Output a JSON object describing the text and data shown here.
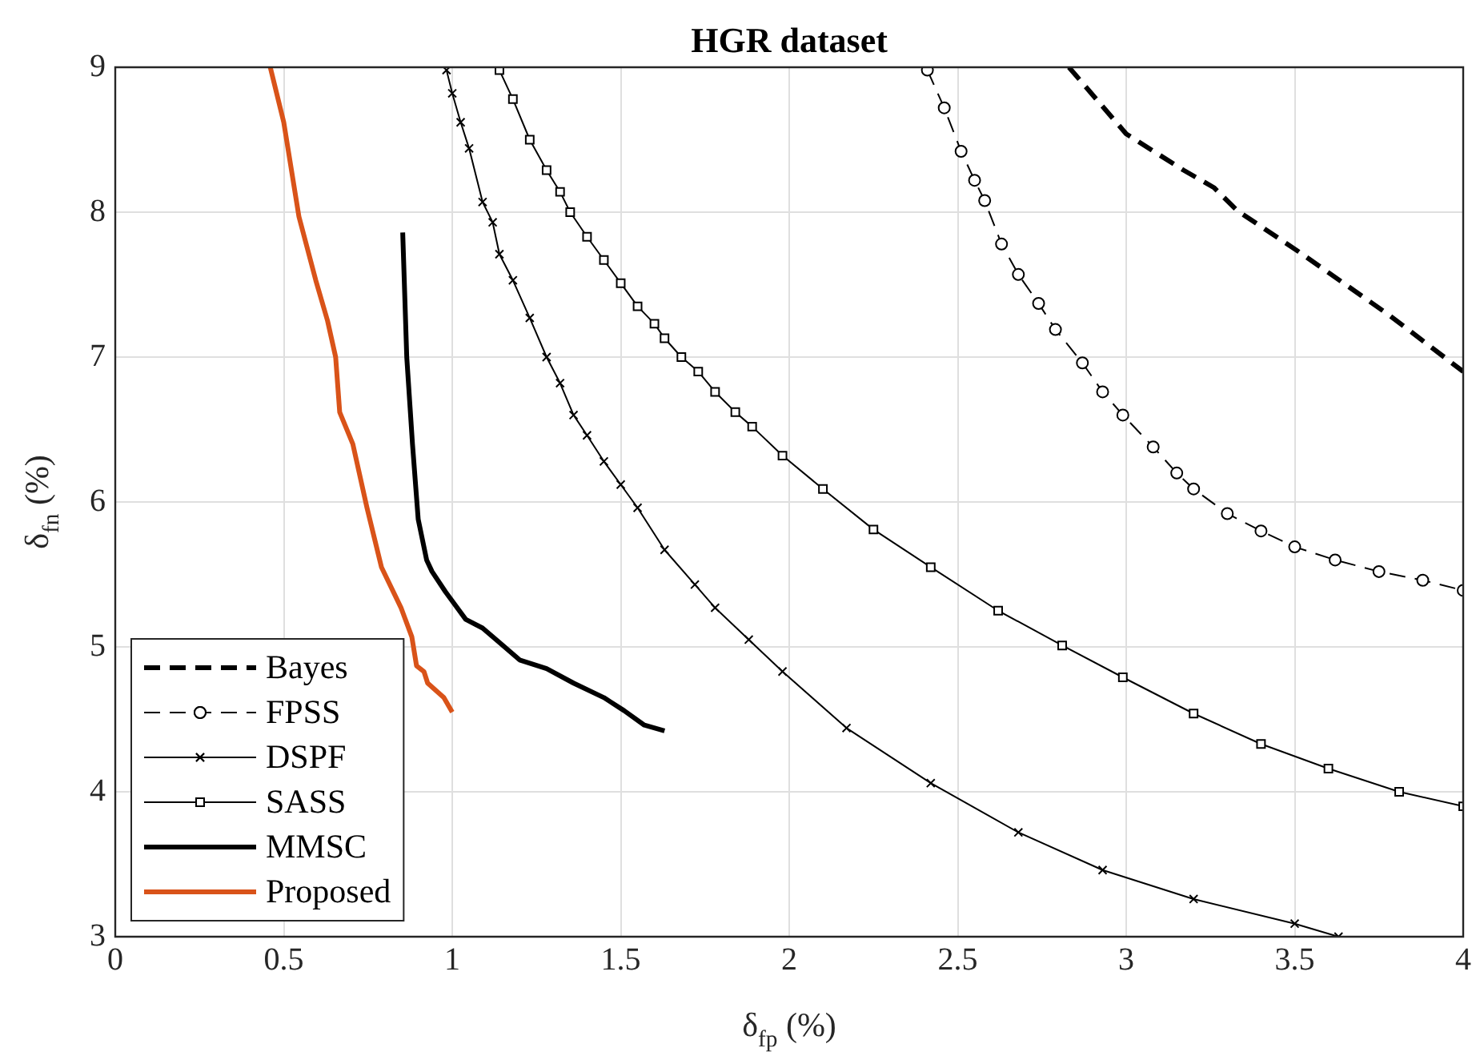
{
  "chart_data": {
    "type": "line",
    "title": "HGR dataset",
    "xlabel": "δ$_{fp}$ (%)",
    "ylabel": "δ$_{fn}$ (%)",
    "xlim": [
      0,
      4
    ],
    "ylim": [
      3,
      9
    ],
    "xticks": [
      0,
      0.5,
      1,
      1.5,
      2,
      2.5,
      3,
      3.5,
      4
    ],
    "yticks": [
      3,
      4,
      5,
      6,
      7,
      8,
      9
    ],
    "grid": true,
    "legend": "bottom left",
    "series": [
      {
        "name": "Bayes",
        "color": "#000000",
        "line_style": "dashed",
        "marker": "none",
        "x": [
          2.83,
          3.0,
          3.17,
          3.26,
          3.33,
          3.51,
          3.78,
          4.0
        ],
        "values": [
          9.0,
          8.54,
          8.29,
          8.17,
          8.01,
          7.73,
          7.29,
          6.9
        ]
      },
      {
        "name": "FPSS",
        "color": "#000000",
        "line_style": "dashed",
        "marker": "circle",
        "x": [
          2.41,
          2.46,
          2.51,
          2.55,
          2.58,
          2.63,
          2.68,
          2.74,
          2.79,
          2.87,
          2.93,
          2.99,
          3.08,
          3.15,
          3.2,
          3.3,
          3.4,
          3.5,
          3.62,
          3.75,
          3.88,
          4.0
        ],
        "values": [
          8.98,
          8.72,
          8.42,
          8.22,
          8.08,
          7.78,
          7.57,
          7.37,
          7.19,
          6.96,
          6.76,
          6.6,
          6.38,
          6.2,
          6.09,
          5.92,
          5.8,
          5.69,
          5.6,
          5.52,
          5.46,
          5.39
        ]
      },
      {
        "name": "DSPF",
        "color": "#000000",
        "line_style": "solid",
        "marker": "cross",
        "x": [
          0.983,
          1.0,
          1.025,
          1.05,
          1.09,
          1.12,
          1.14,
          1.18,
          1.23,
          1.28,
          1.32,
          1.36,
          1.4,
          1.45,
          1.5,
          1.55,
          1.63,
          1.72,
          1.78,
          1.88,
          1.98,
          2.17,
          2.42,
          2.68,
          2.93,
          3.2,
          3.5,
          3.63
        ],
        "values": [
          8.98,
          8.82,
          8.62,
          8.44,
          8.07,
          7.93,
          7.71,
          7.53,
          7.27,
          7.0,
          6.82,
          6.6,
          6.46,
          6.28,
          6.12,
          5.96,
          5.67,
          5.43,
          5.27,
          5.05,
          4.83,
          4.44,
          4.06,
          3.72,
          3.46,
          3.26,
          3.09,
          3.0
        ]
      },
      {
        "name": "SASS",
        "color": "#000000",
        "line_style": "solid",
        "marker": "square",
        "x": [
          1.14,
          1.18,
          1.23,
          1.28,
          1.32,
          1.35,
          1.4,
          1.45,
          1.5,
          1.55,
          1.6,
          1.63,
          1.68,
          1.73,
          1.78,
          1.84,
          1.89,
          1.98,
          2.1,
          2.25,
          2.42,
          2.62,
          2.81,
          2.99,
          3.2,
          3.4,
          3.6,
          3.81,
          4.0
        ],
        "values": [
          8.98,
          8.78,
          8.5,
          8.29,
          8.14,
          8.0,
          7.83,
          7.67,
          7.51,
          7.35,
          7.23,
          7.13,
          7.0,
          6.9,
          6.76,
          6.62,
          6.52,
          6.32,
          6.09,
          5.81,
          5.55,
          5.25,
          5.01,
          4.79,
          4.54,
          4.33,
          4.16,
          4.0,
          3.9
        ]
      },
      {
        "name": "MMSC",
        "color": "#000000",
        "line_style": "solid",
        "marker": "none",
        "x": [
          0.853,
          0.865,
          0.882,
          0.899,
          0.924,
          0.94,
          0.98,
          1.04,
          1.09,
          1.14,
          1.2,
          1.28,
          1.36,
          1.45,
          1.51,
          1.57,
          1.63
        ],
        "values": [
          7.86,
          7.0,
          6.4,
          5.88,
          5.6,
          5.52,
          5.38,
          5.19,
          5.13,
          5.03,
          4.91,
          4.85,
          4.75,
          4.65,
          4.56,
          4.46,
          4.42
        ]
      },
      {
        "name": "Proposed",
        "color": "#d95319",
        "line_style": "solid",
        "marker": "none",
        "x": [
          0.46,
          0.5,
          0.545,
          0.595,
          0.63,
          0.654,
          0.666,
          0.705,
          0.747,
          0.79,
          0.848,
          0.88,
          0.894,
          0.916,
          0.927,
          0.975,
          1.0
        ],
        "values": [
          9.0,
          8.62,
          7.97,
          7.53,
          7.25,
          7.0,
          6.62,
          6.4,
          5.96,
          5.55,
          5.27,
          5.07,
          4.87,
          4.83,
          4.75,
          4.65,
          4.55
        ]
      }
    ]
  }
}
